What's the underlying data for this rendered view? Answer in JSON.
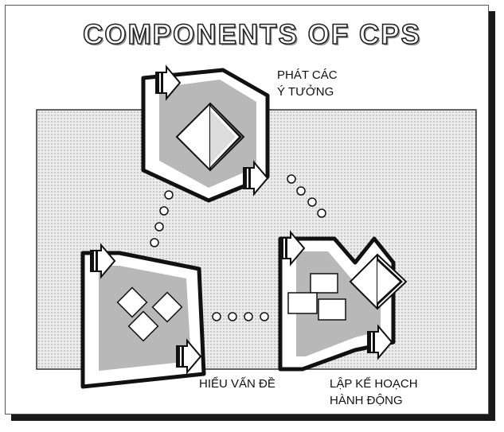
{
  "title": "COMPONENTS OF CPS",
  "components": [
    {
      "id": "generate",
      "lines": [
        "PHÁT CÁC",
        "Ý TƯỞNG"
      ]
    },
    {
      "id": "understand",
      "lines": [
        "HIỂU VẤN ĐỀ"
      ]
    },
    {
      "id": "plan",
      "lines": [
        "LẬP KẾ HOẠCH",
        "HÀNH ĐỘNG"
      ]
    }
  ],
  "colors": {
    "background_dots": "#e4e4e4",
    "stage_fill": "#b8b8b8",
    "frame_shadow": "#1a1a1a"
  },
  "icons": [
    "arrow-icon",
    "diamond-icon",
    "square-cluster-icon",
    "bead-trail-icon"
  ]
}
